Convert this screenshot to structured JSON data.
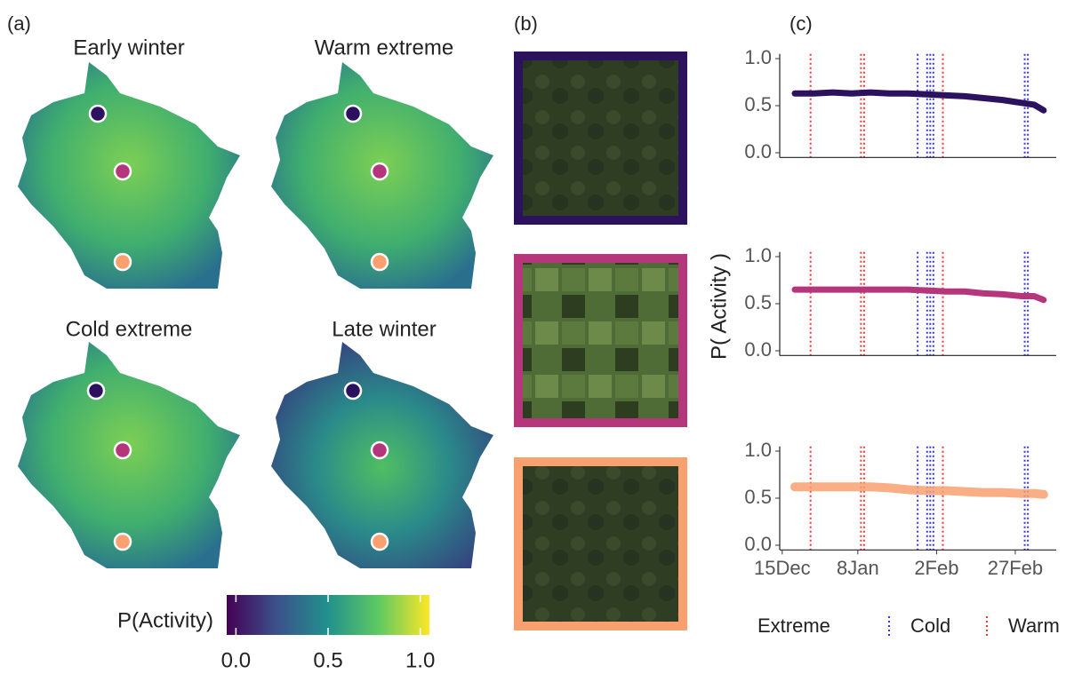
{
  "panel_labels": [
    "(a)",
    "(b)",
    "(c)"
  ],
  "maps": {
    "titles": [
      "Early winter",
      "Warm extreme",
      "Cold extreme",
      "Late winter"
    ]
  },
  "colorbar": {
    "title": "P(Activity)",
    "lim": [
      -0.05,
      1.05
    ],
    "ticks": [
      {
        "value": 0,
        "label": "0.0"
      },
      {
        "value": 0.5,
        "label": "0.5"
      },
      {
        "value": 1,
        "label": "1.0"
      }
    ],
    "colors": [
      "#440154",
      "#3b528b",
      "#21918c",
      "#5ec962",
      "#fde725"
    ]
  },
  "y_label": "P( Activity )",
  "legend": {
    "title": "Extreme",
    "entries": [
      {
        "name": "Cold",
        "color": "#3333ff",
        "x": [
          43,
          46,
          47,
          48,
          77,
          78
        ]
      },
      {
        "name": "Warm",
        "color": "#ff3333",
        "x": [
          9,
          25,
          26,
          51
        ]
      }
    ]
  },
  "chart_data": [
    {
      "type": "line",
      "x": [
        4,
        10,
        16,
        22,
        28,
        34,
        40,
        46,
        52,
        58,
        64,
        70,
        76,
        80,
        83
      ],
      "xlim": [
        -0.8,
        87
      ],
      "ylim": [
        -0.05,
        1.05
      ],
      "yticks": [
        {
          "value": 0,
          "label": "0.0"
        },
        {
          "value": 0.5,
          "label": "0.5"
        },
        {
          "value": 1,
          "label": "1.0"
        }
      ],
      "series": [
        {
          "color": "#2c115f",
          "values": [
            0.63,
            0.63,
            0.64,
            0.63,
            0.64,
            0.63,
            0.63,
            0.62,
            0.61,
            0.6,
            0.58,
            0.56,
            0.53,
            0.51,
            0.45
          ]
        }
      ]
    },
    {
      "type": "line",
      "x": [
        4,
        10,
        16,
        22,
        28,
        34,
        40,
        46,
        52,
        58,
        64,
        70,
        76,
        80,
        83
      ],
      "xlim": [
        -0.8,
        87
      ],
      "ylim": [
        -0.05,
        1.05
      ],
      "yticks": [
        {
          "value": 0,
          "label": "0.0"
        },
        {
          "value": 0.5,
          "label": "0.5"
        },
        {
          "value": 1,
          "label": "1.0"
        }
      ],
      "series": [
        {
          "color": "#b5367a",
          "values": [
            0.65,
            0.65,
            0.65,
            0.65,
            0.65,
            0.65,
            0.65,
            0.64,
            0.63,
            0.63,
            0.61,
            0.6,
            0.58,
            0.58,
            0.54
          ]
        }
      ]
    },
    {
      "type": "line",
      "x": [
        4,
        10,
        16,
        22,
        28,
        34,
        40,
        46,
        52,
        58,
        64,
        70,
        76,
        80,
        83
      ],
      "xlim": [
        -0.8,
        87
      ],
      "xticks": [
        {
          "value": 0,
          "label": "15Dec"
        },
        {
          "value": 24,
          "label": "8Jan"
        },
        {
          "value": 49,
          "label": "2Feb"
        },
        {
          "value": 74,
          "label": "27Feb"
        }
      ],
      "ylim": [
        -0.05,
        1.05
      ],
      "yticks": [
        {
          "value": 0,
          "label": "0.0"
        },
        {
          "value": 0.5,
          "label": "0.5"
        },
        {
          "value": 1,
          "label": "1.0"
        }
      ],
      "series": [
        {
          "color": "#f8a070",
          "values": [
            0.62,
            0.62,
            0.62,
            0.62,
            0.62,
            0.61,
            0.59,
            0.58,
            0.58,
            0.57,
            0.56,
            0.56,
            0.55,
            0.55,
            0.54
          ]
        }
      ]
    }
  ]
}
